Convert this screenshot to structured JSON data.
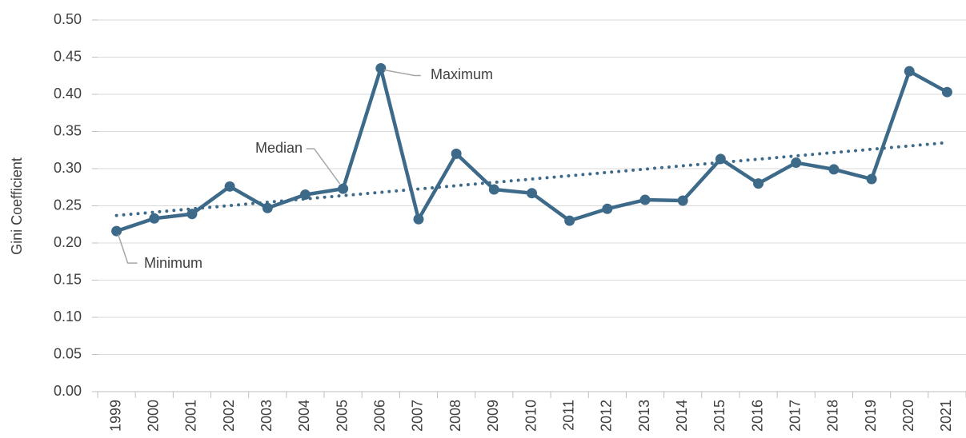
{
  "chart_data": {
    "type": "line",
    "y_label": "Gini Coefficient",
    "categories": [
      "1999",
      "2000",
      "2001",
      "2002",
      "2003",
      "2004",
      "2005",
      "2006",
      "2007",
      "2008",
      "2009",
      "2010",
      "2011",
      "2012",
      "2013",
      "2014",
      "2015",
      "2016",
      "2017",
      "2018",
      "2019",
      "2020",
      "2021"
    ],
    "series": [
      {
        "color": "#3e6a8a",
        "values": [
          0.216,
          0.233,
          0.239,
          0.276,
          0.247,
          0.265,
          0.273,
          0.435,
          0.232,
          0.32,
          0.272,
          0.267,
          0.23,
          0.246,
          0.258,
          0.257,
          0.313,
          0.28,
          0.308,
          0.299,
          0.286,
          0.431,
          0.403
        ]
      }
    ],
    "trendline": [
      0.237,
      0.335
    ],
    "annotations": [
      "Maximum",
      "Median",
      "Minimum"
    ],
    "ylim": [
      0,
      0.5
    ],
    "yticks": [
      {
        "value": 0,
        "label": "0.00"
      },
      0.05,
      {
        "value": 0.1,
        "label": "0.10"
      },
      0.15,
      {
        "value": 0.2,
        "label": "0.20"
      },
      0.25,
      {
        "value": 0.3,
        "label": "0.30"
      },
      0.35,
      {
        "value": 0.4,
        "label": "0.40"
      },
      0.45,
      {
        "value": 0.5,
        "label": "0.50"
      }
    ],
    "grid": true
  }
}
